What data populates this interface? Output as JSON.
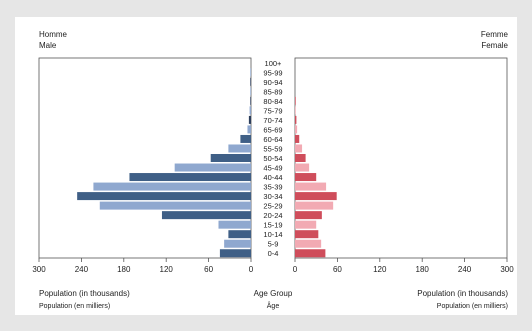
{
  "chart_data": {
    "type": "bar",
    "subtype": "population-pyramid",
    "left_header": {
      "line1": "Homme",
      "line2": "Male"
    },
    "right_header": {
      "line1": "Femme",
      "line2": "Female"
    },
    "categories": [
      "100+",
      "95-99",
      "90-94",
      "85-89",
      "80-84",
      "75-79",
      "70-74",
      "65-69",
      "60-64",
      "55-59",
      "50-54",
      "45-49",
      "40-44",
      "35-39",
      "30-34",
      "25-29",
      "20-24",
      "15-19",
      "10-14",
      "5-9",
      "0-4"
    ],
    "series": [
      {
        "name": "Male",
        "values": [
          0,
          1,
          1,
          1,
          1,
          2,
          3,
          5,
          15,
          32,
          57,
          108,
          172,
          223,
          246,
          214,
          126,
          46,
          32,
          38,
          44
        ],
        "colors": [
          "#2c3e5c",
          "#8fa8cf",
          "#2c3e5c",
          "#8fa8cf",
          "#2c3e5c",
          "#8fa8cf",
          "#2c3e5c",
          "#8fa8cf",
          "#3f5f86",
          "#8fa8cf",
          "#3f5f86",
          "#8fa8cf",
          "#3f5f86",
          "#8fa8cf",
          "#3f5f86",
          "#8fa8cf",
          "#3f5f86",
          "#8fa8cf",
          "#3f5f86",
          "#8fa8cf",
          "#3f5f86"
        ]
      },
      {
        "name": "Female",
        "values": [
          0,
          0,
          0,
          0,
          1,
          1,
          2,
          3,
          6,
          10,
          15,
          20,
          30,
          44,
          59,
          54,
          38,
          30,
          33,
          37,
          43
        ],
        "colors": [
          "#cf4d5b",
          "#f2aab3",
          "#cf4d5b",
          "#f2aab3",
          "#cf4d5b",
          "#f2aab3",
          "#cf4d5b",
          "#f2aab3",
          "#cf4d5b",
          "#f2aab3",
          "#cf4d5b",
          "#f2aab3",
          "#cf4d5b",
          "#f2aab3",
          "#cf4d5b",
          "#f2aab3",
          "#cf4d5b",
          "#f2aab3",
          "#cf4d5b",
          "#f2aab3",
          "#cf4d5b"
        ]
      }
    ],
    "left_ticks": [
      "300",
      "240",
      "180",
      "120",
      "60",
      "0"
    ],
    "right_ticks": [
      "0",
      "60",
      "120",
      "180",
      "240",
      "300"
    ],
    "xlim": [
      0,
      300
    ],
    "xlabel_left": {
      "line1": "Population (in thousands)",
      "line2": "Population (en milliers)"
    },
    "xlabel_center": {
      "line1": "Age Group",
      "line2": "Âge"
    },
    "xlabel_right": {
      "line1": "Population (in thousands)",
      "line2": "Population (en milliers)"
    }
  }
}
